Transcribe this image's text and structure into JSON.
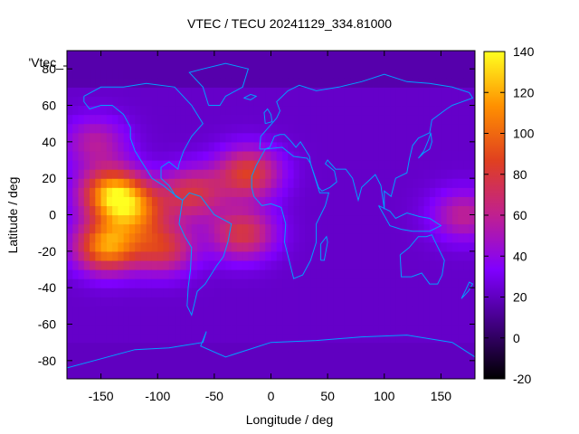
{
  "title": "VTEC / TECU 20241129_334.81000",
  "xlabel": "Longitude / deg",
  "ylabel": "Latitude / deg",
  "dataset_key": "'Vtec_",
  "x_ticks": [
    -150,
    -100,
    -50,
    0,
    50,
    100,
    150
  ],
  "y_ticks": [
    -80,
    -60,
    -40,
    -20,
    0,
    20,
    40,
    60,
    80
  ],
  "colorbar_ticks": [
    -20,
    0,
    20,
    40,
    60,
    80,
    100,
    120,
    140
  ],
  "xlim": [
    -180,
    180
  ],
  "ylim": [
    -90,
    90
  ],
  "colorbar_range": [
    -20,
    140
  ],
  "coastline_color": "#00a0ff",
  "palette": [
    "#000000",
    "#400080",
    "#8000ff",
    "#c02090",
    "#e04020",
    "#ff9000",
    "#ffff20"
  ],
  "chart_data": {
    "type": "heatmap",
    "title": "VTEC / TECU 20241129_334.81000",
    "xlabel": "Longitude / deg",
    "ylabel": "Latitude / deg",
    "xlim": [
      -180,
      180
    ],
    "ylim": [
      -90,
      90
    ],
    "zlim": [
      -20,
      140
    ],
    "background_vtec": 22,
    "features": [
      {
        "lon": -140,
        "lat": 12,
        "vtec": 132
      },
      {
        "lon": -145,
        "lat": -17,
        "vtec": 128
      },
      {
        "lon": -120,
        "lat": 2,
        "vtec": 95
      },
      {
        "lon": -95,
        "lat": -18,
        "vtec": 88
      },
      {
        "lon": -70,
        "lat": 12,
        "vtec": 85
      },
      {
        "lon": -20,
        "lat": 23,
        "vtec": 95
      },
      {
        "lon": -25,
        "lat": -10,
        "vtec": 88
      },
      {
        "lon": -155,
        "lat": 40,
        "vtec": 62
      },
      {
        "lon": 170,
        "lat": 0,
        "vtec": 66
      }
    ]
  }
}
